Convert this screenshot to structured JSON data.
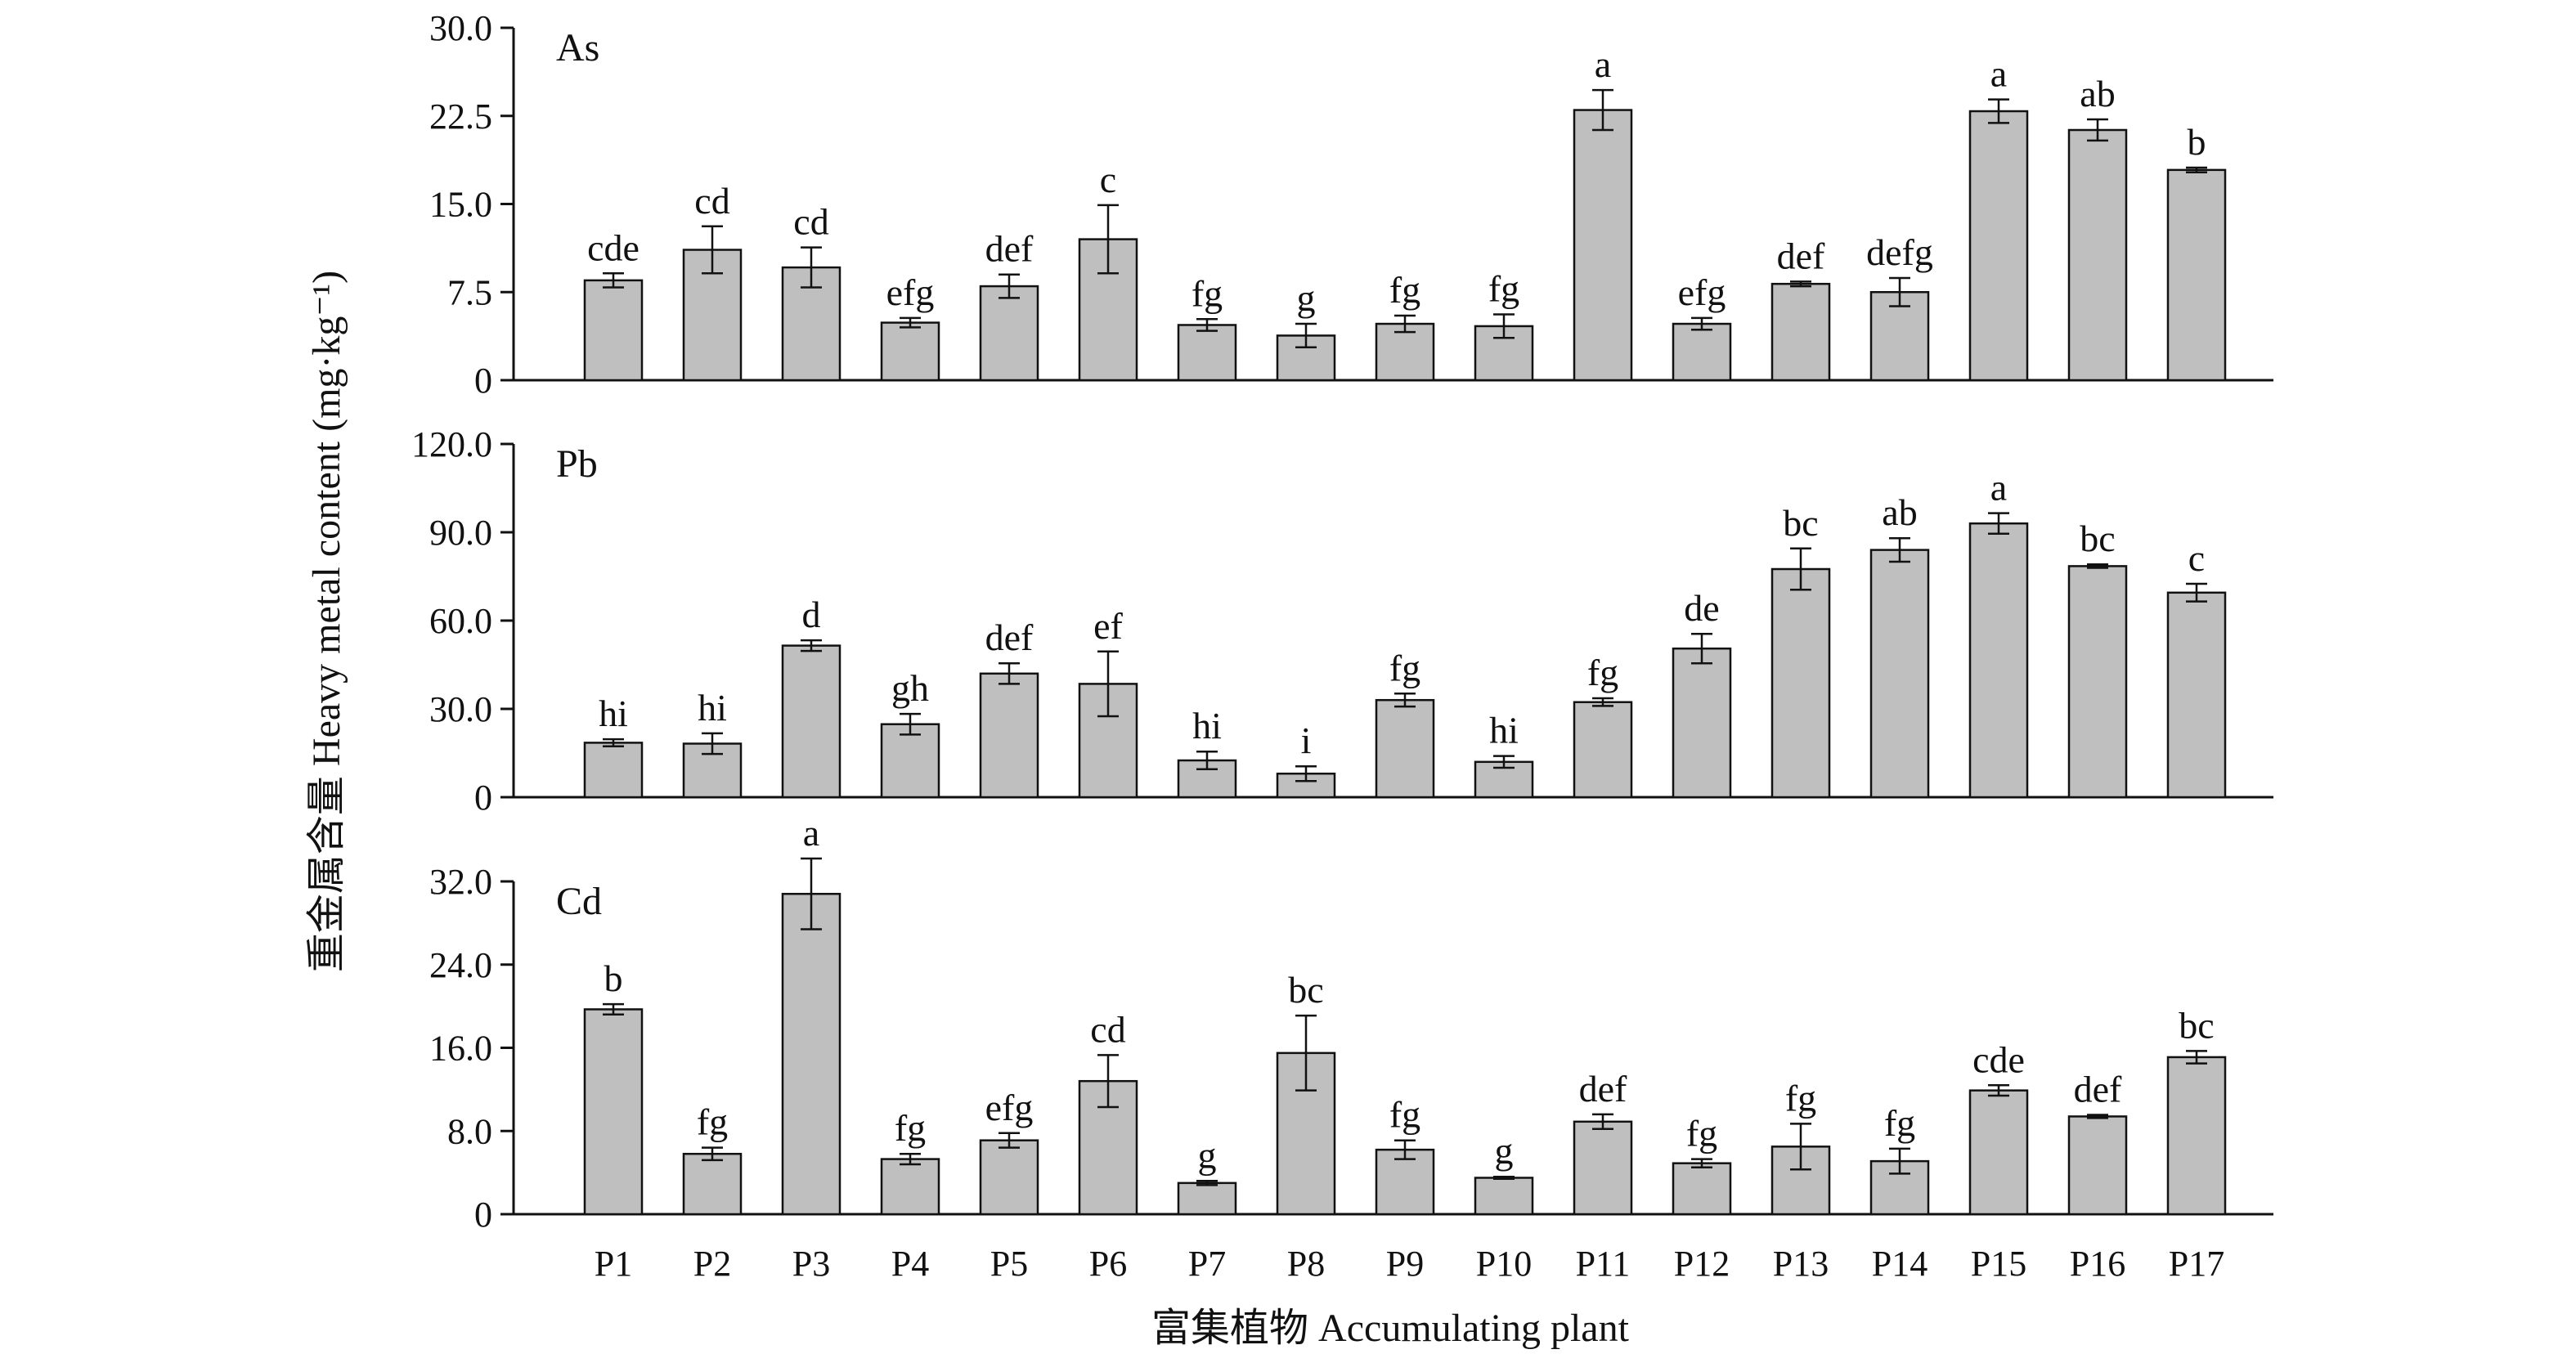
{
  "chart_data": {
    "type": "bar",
    "xlabel": "富集植物 Accumulating plant",
    "ylabel": "重金属含量 Heavy metal content (mg·kg⁻¹)",
    "categories": [
      "P1",
      "P2",
      "P3",
      "P4",
      "P5",
      "P6",
      "P7",
      "P8",
      "P9",
      "P10",
      "P11",
      "P12",
      "P13",
      "P14",
      "P15",
      "P16",
      "P17"
    ],
    "bar_color": "#bfbfbf",
    "panels": [
      {
        "name": "As",
        "ylim": [
          0,
          30
        ],
        "yticks": [
          0,
          7.5,
          15,
          22.5,
          30
        ],
        "ytick_labels": [
          "0",
          "7.5",
          "15.0",
          "22.5",
          "30.0"
        ],
        "values": [
          8.5,
          11.1,
          9.6,
          4.9,
          8.0,
          12.0,
          4.7,
          3.8,
          4.8,
          4.6,
          23.0,
          4.8,
          8.2,
          7.5,
          22.9,
          21.3,
          17.9
        ],
        "errors": [
          0.6,
          2.0,
          1.7,
          0.4,
          1.0,
          2.9,
          0.5,
          1.0,
          0.7,
          1.0,
          1.7,
          0.5,
          0.2,
          1.2,
          1.0,
          0.9,
          0.2
        ],
        "sig": [
          "cde",
          "cd",
          "cd",
          "efg",
          "def",
          "c",
          "fg",
          "g",
          "fg",
          "fg",
          "a",
          "efg",
          "def",
          "defg",
          "a",
          "ab",
          "b"
        ]
      },
      {
        "name": "Pb",
        "ylim": [
          0,
          120
        ],
        "yticks": [
          0,
          30,
          60,
          90,
          120
        ],
        "ytick_labels": [
          "0",
          "30.0",
          "60.0",
          "90.0",
          "120.0"
        ],
        "values": [
          18.5,
          18.2,
          51.5,
          24.8,
          42.0,
          38.5,
          12.5,
          8.0,
          33.0,
          12.0,
          32.3,
          50.5,
          77.5,
          84.0,
          93.0,
          78.5,
          69.5
        ],
        "errors": [
          1.2,
          3.5,
          1.8,
          3.5,
          3.5,
          11.0,
          3.0,
          2.5,
          2.2,
          2.0,
          1.3,
          5.0,
          7.0,
          4.0,
          3.5,
          0.6,
          3.0
        ],
        "sig": [
          "hi",
          "hi",
          "d",
          "gh",
          "def",
          "ef",
          "hi",
          "i",
          "fg",
          "hi",
          "fg",
          "de",
          "bc",
          "ab",
          "a",
          "bc",
          "c"
        ]
      },
      {
        "name": "Cd",
        "ylim": [
          0,
          32
        ],
        "yticks": [
          0,
          8,
          16,
          24,
          32
        ],
        "ytick_labels": [
          "0",
          "8.0",
          "16.0",
          "24.0",
          "32.0"
        ],
        "values": [
          19.7,
          5.8,
          30.8,
          5.3,
          7.1,
          12.8,
          3.0,
          15.5,
          6.2,
          3.5,
          8.9,
          4.9,
          6.5,
          5.1,
          11.9,
          9.4,
          15.1
        ],
        "errors": [
          0.5,
          0.6,
          3.4,
          0.5,
          0.7,
          2.5,
          0.2,
          3.6,
          0.9,
          0.1,
          0.7,
          0.4,
          2.2,
          1.2,
          0.5,
          0.15,
          0.6
        ],
        "sig": [
          "b",
          "fg",
          "a",
          "fg",
          "efg",
          "cd",
          "g",
          "bc",
          "fg",
          "g",
          "def",
          "fg",
          "fg",
          "fg",
          "cde",
          "def",
          "bc"
        ]
      }
    ]
  }
}
